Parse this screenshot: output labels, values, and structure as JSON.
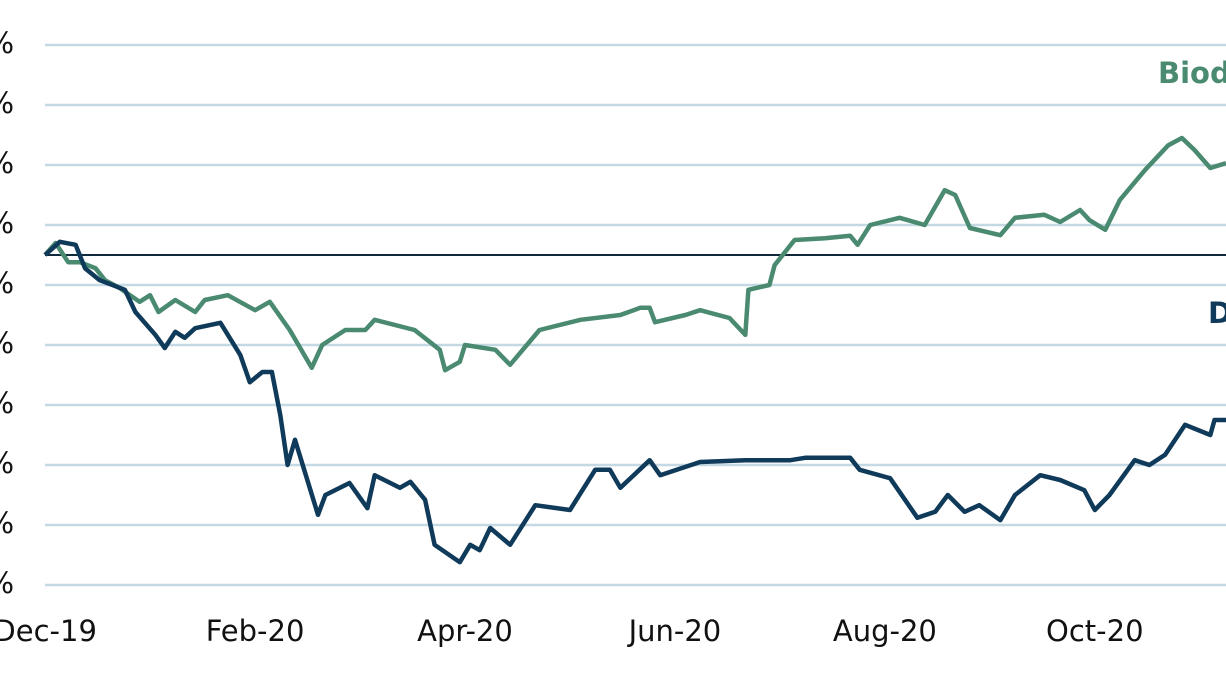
{
  "chart_data": {
    "type": "line",
    "xlim": [
      -0.43,
      11.25
    ],
    "xticks": [
      {
        "value": 0,
        "label": "Dec-19"
      },
      {
        "value": 2,
        "label": "Feb-20"
      },
      {
        "value": 4,
        "label": "Apr-20"
      },
      {
        "value": 6,
        "label": "Jun-20"
      },
      {
        "value": 8,
        "label": "Aug-20"
      },
      {
        "value": 10,
        "label": "Oct-20"
      }
    ],
    "ylim": [
      -55,
      35
    ],
    "yticks": [
      {
        "value": 35,
        "label": "%"
      },
      {
        "value": 25,
        "label": "%"
      },
      {
        "value": 15,
        "label": "%"
      },
      {
        "value": 5,
        "label": "%"
      },
      {
        "value": -5,
        "label": "%"
      },
      {
        "value": -15,
        "label": "%"
      },
      {
        "value": -25,
        "label": "%"
      },
      {
        "value": -35,
        "label": "%"
      },
      {
        "value": -45,
        "label": "%"
      },
      {
        "value": -55,
        "label": "%"
      }
    ],
    "grid": true,
    "reference_line": 0,
    "series": [
      {
        "name": "Biod",
        "color": "#4a8a70",
        "x": [
          0,
          0.1,
          0.22,
          0.33,
          0.48,
          0.57,
          0.71,
          0.9,
          1.0,
          1.08,
          1.24,
          1.43,
          1.52,
          1.74,
          2.0,
          2.14,
          2.33,
          2.54,
          2.64,
          2.86,
          3.05,
          3.14,
          3.52,
          3.76,
          3.81,
          3.95,
          4.0,
          4.29,
          4.43,
          4.71,
          5.1,
          5.48,
          5.67,
          5.76,
          5.81,
          6.1,
          6.24,
          6.52,
          6.67,
          6.7,
          6.9,
          6.95,
          7.14,
          7.43,
          7.67,
          7.74,
          7.86,
          8.14,
          8.38,
          8.57,
          8.67,
          8.81,
          9.1,
          9.24,
          9.52,
          9.67,
          9.86,
          9.95,
          10.1,
          10.24,
          10.48,
          10.7,
          10.83,
          10.95,
          11.1,
          11.25
        ],
        "values": [
          0,
          2.0,
          -1.2,
          -1.2,
          -2.2,
          -4.2,
          -5.5,
          -7.8,
          -6.7,
          -9.5,
          -7.5,
          -9.5,
          -7.5,
          -6.7,
          -9.2,
          -7.8,
          -12.5,
          -18.8,
          -15.0,
          -12.5,
          -12.5,
          -10.8,
          -12.5,
          -15.8,
          -19.2,
          -17.8,
          -15.0,
          -15.8,
          -18.3,
          -12.5,
          -10.8,
          -10.0,
          -8.8,
          -8.8,
          -11.2,
          -10.0,
          -9.2,
          -10.5,
          -13.3,
          -5.8,
          -5.0,
          -1.7,
          2.5,
          2.8,
          3.2,
          1.7,
          5.0,
          6.2,
          5.0,
          10.8,
          10.0,
          4.5,
          3.3,
          6.2,
          6.7,
          5.5,
          7.5,
          5.8,
          4.2,
          9.2,
          14.2,
          18.3,
          19.5,
          17.5,
          14.5,
          15.3
        ]
      },
      {
        "name": "D",
        "color": "#0f3a5a",
        "x": [
          0,
          0.14,
          0.29,
          0.38,
          0.52,
          0.76,
          0.86,
          1.05,
          1.14,
          1.24,
          1.33,
          1.43,
          1.67,
          1.86,
          1.95,
          2.07,
          2.16,
          2.24,
          2.31,
          2.38,
          2.6,
          2.67,
          2.9,
          3.07,
          3.14,
          3.38,
          3.48,
          3.62,
          3.71,
          3.95,
          4.05,
          4.14,
          4.24,
          4.43,
          4.67,
          5.0,
          5.24,
          5.38,
          5.48,
          5.76,
          5.86,
          6.24,
          6.67,
          7.1,
          7.24,
          7.67,
          7.76,
          8.05,
          8.31,
          8.48,
          8.6,
          8.76,
          8.9,
          9.1,
          9.24,
          9.48,
          9.67,
          9.9,
          10.0,
          10.14,
          10.38,
          10.52,
          10.67,
          10.86,
          11.1,
          11.14,
          11.25
        ],
        "values": [
          0,
          2.2,
          1.7,
          -2.2,
          -4.2,
          -5.8,
          -9.5,
          -13.3,
          -15.5,
          -12.8,
          -13.8,
          -12.2,
          -11.3,
          -16.7,
          -21.2,
          -19.5,
          -19.5,
          -26.7,
          -35.0,
          -30.8,
          -43.3,
          -40.0,
          -38.0,
          -42.2,
          -36.7,
          -38.8,
          -37.8,
          -40.8,
          -48.3,
          -51.2,
          -48.3,
          -49.2,
          -45.5,
          -48.3,
          -41.7,
          -42.5,
          -35.8,
          -35.8,
          -38.8,
          -34.2,
          -36.7,
          -34.5,
          -34.2,
          -34.2,
          -33.8,
          -33.8,
          -35.8,
          -37.2,
          -43.8,
          -42.8,
          -40.0,
          -42.8,
          -41.7,
          -44.2,
          -40.0,
          -36.7,
          -37.5,
          -39.2,
          -42.5,
          -40.0,
          -34.2,
          -35.0,
          -33.3,
          -28.3,
          -30.0,
          -27.5,
          -27.5
        ]
      }
    ]
  }
}
